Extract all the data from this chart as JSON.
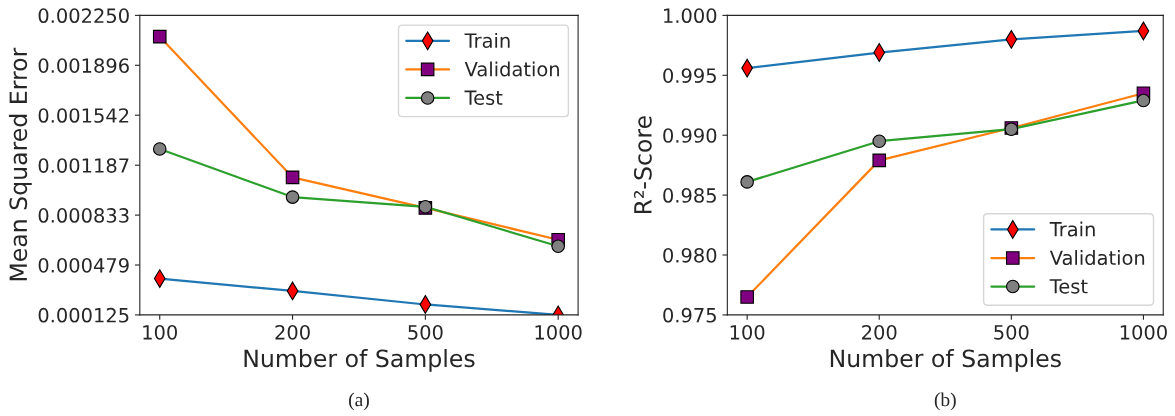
{
  "chart_data": [
    {
      "type": "line",
      "categories": [
        "100",
        "200",
        "500",
        "1000"
      ],
      "xlabel": "Number of Samples",
      "ylabel": "Mean Squared Error",
      "ylim": [
        0.000125,
        0.00225
      ],
      "yticks": [
        {
          "value": 0.000125,
          "label": "0.000125"
        },
        {
          "value": 0.000479,
          "label": "0.000479"
        },
        {
          "value": 0.000833,
          "label": "0.000833"
        },
        {
          "value": 0.001187,
          "label": "0.001187"
        },
        {
          "value": 0.001542,
          "label": "0.001542"
        },
        {
          "value": 0.001896,
          "label": "0.001896"
        },
        {
          "value": 0.00225,
          "label": "0.002250"
        }
      ],
      "legend": "top right",
      "annotations": [
        "(a)"
      ],
      "series": [
        {
          "name": "Train",
          "color": "#1f77b4",
          "marker": "diamond",
          "values": [
            0.000383,
            0.000295,
            0.000199,
            0.000125
          ]
        },
        {
          "name": "Validation",
          "color": "#ff7f0e",
          "marker": "square",
          "values": [
            0.002099,
            0.001101,
            0.000884,
            0.000658
          ]
        },
        {
          "name": "Test",
          "color": "#2ca02c",
          "marker": "circle",
          "values": [
            0.001302,
            0.000961,
            0.000892,
            0.000612
          ]
        }
      ]
    },
    {
      "type": "line",
      "categories": [
        "100",
        "200",
        "500",
        "1000"
      ],
      "xlabel": "Number of Samples",
      "ylabel": "R²-Score",
      "ylim": [
        0.975,
        1.0
      ],
      "yticks": [
        {
          "value": 0.975,
          "label": "0.975"
        },
        {
          "value": 0.98,
          "label": "0.980"
        },
        {
          "value": 0.985,
          "label": "0.985"
        },
        {
          "value": 0.99,
          "label": "0.990"
        },
        {
          "value": 0.995,
          "label": "0.995"
        },
        {
          "value": 1.0,
          "label": "1.000"
        }
      ],
      "legend": "bottom right",
      "annotations": [
        "(b)"
      ],
      "series": [
        {
          "name": "Train",
          "color": "#1f77b4",
          "marker": "diamond",
          "values": [
            0.9956,
            0.9969,
            0.998,
            0.9987
          ]
        },
        {
          "name": "Validation",
          "color": "#ff7f0e",
          "marker": "square",
          "values": [
            0.9765,
            0.9879,
            0.9906,
            0.9935
          ]
        },
        {
          "name": "Test",
          "color": "#2ca02c",
          "marker": "circle",
          "values": [
            0.9861,
            0.9895,
            0.9905,
            0.9929
          ]
        }
      ]
    }
  ]
}
